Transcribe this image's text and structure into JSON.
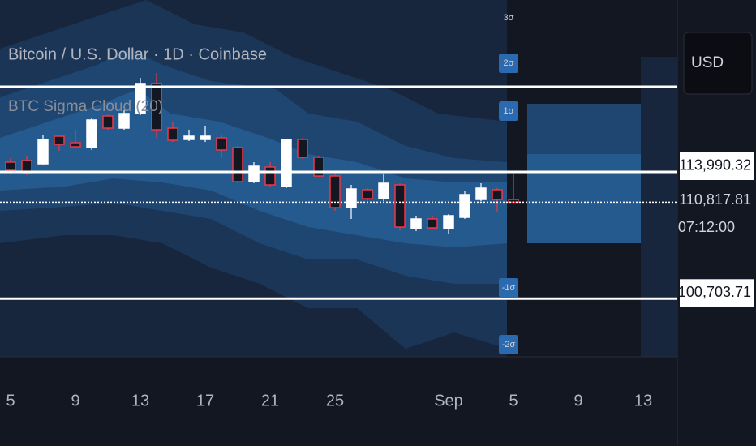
{
  "chart_data": {
    "type": "candlestick",
    "title": "Bitcoin / U.S. Dollar · 1D · Coinbase",
    "indicator": "BTC Sigma Cloud (20)",
    "currency": "USD",
    "up_color": "#ffffff",
    "down_color": "#f23645",
    "ylim": [
      94610,
      132010
    ],
    "x": [
      "08-05",
      "08-06",
      "08-07",
      "08-08",
      "08-09",
      "08-10",
      "08-11",
      "08-12",
      "08-13",
      "08-14",
      "08-15",
      "08-16",
      "08-17",
      "08-18",
      "08-19",
      "08-20",
      "08-21",
      "08-22",
      "08-23",
      "08-24",
      "08-25",
      "08-26",
      "08-27",
      "08-28",
      "08-29",
      "08-30",
      "08-31",
      "09-01",
      "09-02",
      "09-03",
      "09-04",
      "09-05"
    ],
    "open": [
      115010,
      115180,
      114840,
      117730,
      117050,
      116540,
      119855,
      118580,
      120110,
      123260,
      118580,
      117390,
      117390,
      117560,
      116540,
      112970,
      114500,
      112460,
      117390,
      115520,
      113565,
      110250,
      112120,
      111185,
      112630,
      108040,
      109060,
      108040,
      109230,
      111100,
      112120,
      111100
    ],
    "close": [
      114160,
      113820,
      117390,
      116880,
      116625,
      119430,
      118580,
      120110,
      123260,
      118410,
      117305,
      117730,
      117730,
      116285,
      112970,
      114585,
      112630,
      117390,
      115520,
      113565,
      110250,
      112205,
      111185,
      112800,
      108210,
      109060,
      108125,
      109400,
      111610,
      112290,
      111100,
      110817.81
    ],
    "high": [
      115435,
      115690,
      117900,
      117900,
      118410,
      119600,
      120000,
      120450,
      123850,
      124360,
      119260,
      118410,
      118835,
      117815,
      116710,
      115010,
      115010,
      117390,
      117560,
      115690,
      113735,
      112630,
      112290,
      113820,
      112800,
      109400,
      109400,
      109570,
      111950,
      112800,
      112290,
      113820
    ],
    "low": [
      113735,
      113650,
      114670,
      116200,
      116540,
      116300,
      118410,
      118410,
      119940,
      117560,
      117135,
      117220,
      117135,
      115435,
      112800,
      112800,
      112460,
      112290,
      115350,
      113480,
      109910,
      109060,
      110950,
      110930,
      107870,
      107785,
      107960,
      107530,
      109060,
      110930,
      109740,
      110760
    ],
    "xticks": [
      {
        "value": "08-05",
        "label": "5"
      },
      {
        "value": "08-09",
        "label": "9"
      },
      {
        "value": "08-13",
        "label": "13"
      },
      {
        "value": "08-17",
        "label": "17"
      },
      {
        "value": "08-21",
        "label": "21"
      },
      {
        "value": "08-25",
        "label": "25"
      },
      {
        "value": "09-01",
        "label": "Sep"
      },
      {
        "value": "09-05",
        "label": "5"
      },
      {
        "value": "09-09",
        "label": "9"
      },
      {
        "value": "09-13",
        "label": "13"
      }
    ],
    "price_lines": [
      {
        "value": 122915
      },
      {
        "value": 113990.32,
        "label": "113,990.32"
      },
      {
        "value": 100703.71,
        "label": "100,703.71"
      }
    ],
    "current_price": {
      "value": 110817.81,
      "label": "110,817.81",
      "countdown": "07:12:00"
    },
    "sigma_labels": [
      "3σ",
      "2σ",
      "1σ",
      "-1σ",
      "-2σ"
    ]
  }
}
